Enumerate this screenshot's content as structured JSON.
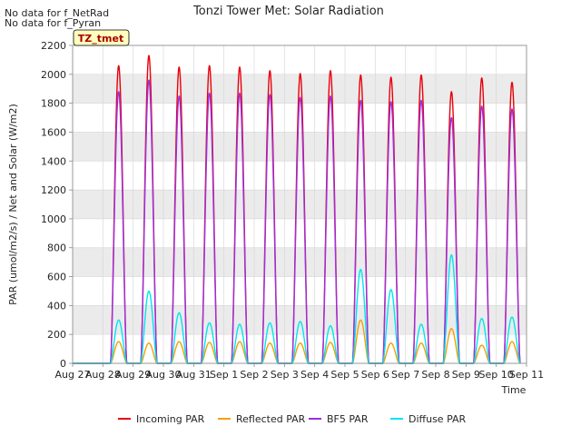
{
  "chart_data": {
    "type": "line",
    "title": "Tonzi Tower Met: Solar Radiation",
    "xlabel": "Time",
    "ylabel": "PAR (umol/m2/s) / Net and Solar (W/m2)",
    "ylim": [
      0,
      2200
    ],
    "xlim": [
      0,
      15
    ],
    "yticks": [
      0,
      200,
      400,
      600,
      800,
      1000,
      1200,
      1400,
      1600,
      1800,
      2000,
      2200
    ],
    "xtick_labels": [
      "Aug 27",
      "Aug 28",
      "Aug 29",
      "Aug 30",
      "Aug 31",
      "Sep 1",
      "Sep 2",
      "Sep 3",
      "Sep 4",
      "Sep 5",
      "Sep 6",
      "Sep 7",
      "Sep 8",
      "Sep 9",
      "Sep 10",
      "Sep 11"
    ],
    "grid": true,
    "legend_position": "bottom",
    "notes": [
      "No data for f_NetRad",
      "No data for f_Pyran"
    ],
    "tag": "TZ_tmet",
    "day_offsets": [
      0,
      1,
      2,
      3,
      4,
      5,
      6,
      7,
      8,
      9,
      10,
      11,
      12,
      13,
      14
    ],
    "series": [
      {
        "name": "Incoming PAR",
        "color": "#e8000b",
        "daily_peaks": [
          0,
          2060,
          2130,
          2050,
          2060,
          2050,
          2025,
          2005,
          2025,
          1995,
          1980,
          1995,
          1880,
          1975,
          1945
        ]
      },
      {
        "name": "Reflected PAR",
        "color": "#f5a000",
        "daily_peaks": [
          0,
          150,
          140,
          150,
          145,
          150,
          140,
          140,
          145,
          300,
          140,
          140,
          240,
          125,
          150
        ]
      },
      {
        "name": "BF5 PAR",
        "color": "#9b30e0",
        "daily_peaks": [
          0,
          1880,
          1960,
          1850,
          1870,
          1870,
          1860,
          1840,
          1850,
          1820,
          1810,
          1820,
          1700,
          1780,
          1760
        ]
      },
      {
        "name": "Diffuse PAR",
        "color": "#00e5f0",
        "daily_peaks": [
          0,
          300,
          500,
          350,
          280,
          270,
          280,
          290,
          260,
          650,
          510,
          270,
          750,
          310,
          320
        ]
      }
    ]
  },
  "colors": {
    "band": "#ebebeb",
    "grid": "#d9d9d9",
    "axis": "#888888",
    "tag_bg": "#ffffc0",
    "tag_text": "#aa0000"
  }
}
